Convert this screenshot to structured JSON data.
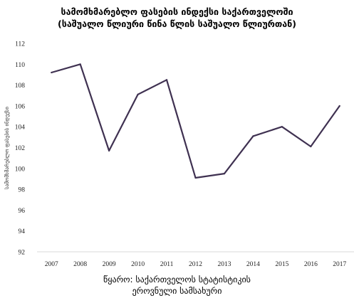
{
  "chart_data": {
    "type": "line",
    "title_line1": "სამომხმარებლო ფასების ინდექსი საქართველოში",
    "title_line2": "(საშუალო წლიური წინა წლის საშუალო წლიურთან)",
    "xlabel": "",
    "ylabel": "სამომხმარებლო ფასების ინდექსი",
    "x": [
      "2007",
      "2008",
      "2009",
      "2010",
      "2011",
      "2012",
      "2013",
      "2014",
      "2015",
      "2016",
      "2017"
    ],
    "series": [
      {
        "values": [
          109.2,
          110.0,
          101.7,
          107.1,
          108.5,
          99.1,
          99.5,
          103.1,
          104.0,
          102.1,
          106.0
        ]
      }
    ],
    "ylim": [
      92,
      112
    ],
    "yticks": [
      92,
      94,
      96,
      98,
      100,
      102,
      104,
      106,
      108,
      110,
      112
    ],
    "grid": false,
    "line_color": "#3f3151"
  },
  "source_line1": "წყარო: საქართველოს სტატისტიკის",
  "source_line2": "ეროვნული სამსახური"
}
